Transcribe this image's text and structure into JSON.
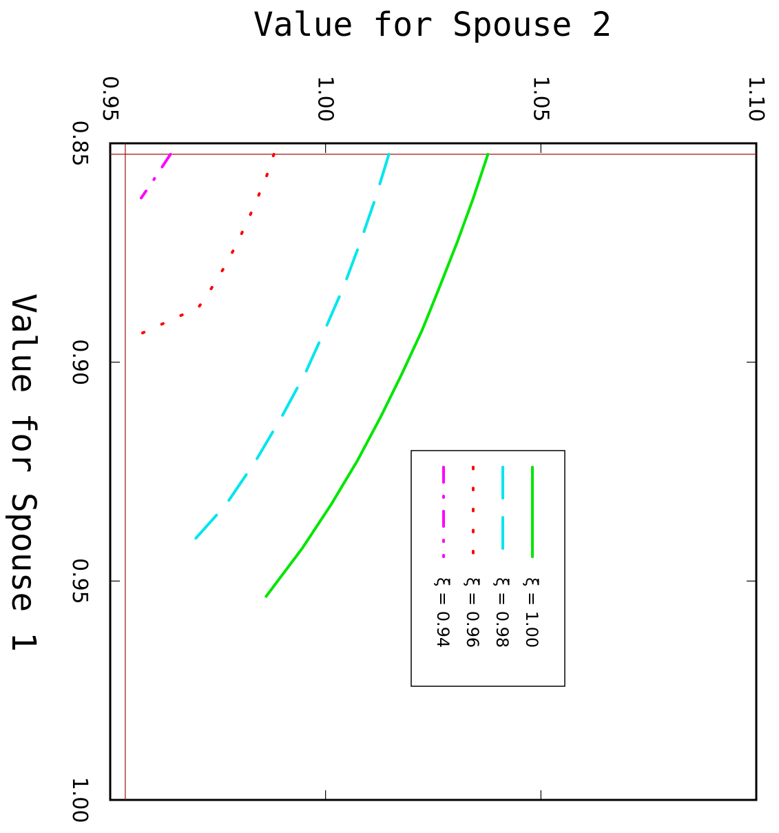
{
  "chart_data": {
    "type": "line",
    "xlabel": "Value for Spouse 1",
    "ylabel": "Value for Spouse 2",
    "xlim": [
      0.85,
      1.0
    ],
    "ylim": [
      0.95,
      1.1
    ],
    "x_ticks": [
      "0.85",
      "0.90",
      "0.95",
      "1.00"
    ],
    "y_ticks": [
      "0.95",
      "1.00",
      "1.05",
      "1.10"
    ],
    "reference_lines": {
      "x": 0.8525,
      "y": 0.9535,
      "color": "#a01010"
    },
    "legend_position": "center-right",
    "legend_symbol": "ξ",
    "series": [
      {
        "name": "1.00",
        "color": "#00e600",
        "dash": "solid",
        "x": [
          0.8525,
          0.8625,
          0.8725,
          0.8825,
          0.8925,
          0.9025,
          0.9125,
          0.9225,
          0.9325,
          0.9425,
          0.9535
        ],
        "y": [
          1.0377,
          1.0343,
          1.0306,
          1.0266,
          1.0225,
          1.0178,
          1.0128,
          1.0074,
          1.0013,
          0.9946,
          0.9862
        ]
      },
      {
        "name": "0.98",
        "color": "#00e5ee",
        "dash": "long-dash",
        "x": [
          0.8525,
          0.8625,
          0.8725,
          0.8825,
          0.8925,
          0.9025,
          0.9125,
          0.9225,
          0.9325,
          0.9425
        ],
        "y": [
          1.0147,
          1.0116,
          1.0081,
          1.0043,
          0.9999,
          0.9953,
          0.9898,
          0.9838,
          0.9769,
          0.9678
        ]
      },
      {
        "name": "0.96",
        "color": "#ff0000",
        "dash": "dotted",
        "x": [
          0.8525,
          0.8575,
          0.8625,
          0.8675,
          0.8725,
          0.8775,
          0.8825,
          0.8875,
          0.8935
        ],
        "y": [
          0.988,
          0.9863,
          0.9842,
          0.982,
          0.9796,
          0.977,
          0.9739,
          0.9705,
          0.9571
        ]
      },
      {
        "name": "0.94",
        "color": "#ff00ff",
        "dash": "dash-dot",
        "x": [
          0.8525,
          0.8555,
          0.8585,
          0.8625
        ],
        "y": [
          0.964,
          0.962,
          0.96,
          0.9572
        ]
      }
    ]
  }
}
